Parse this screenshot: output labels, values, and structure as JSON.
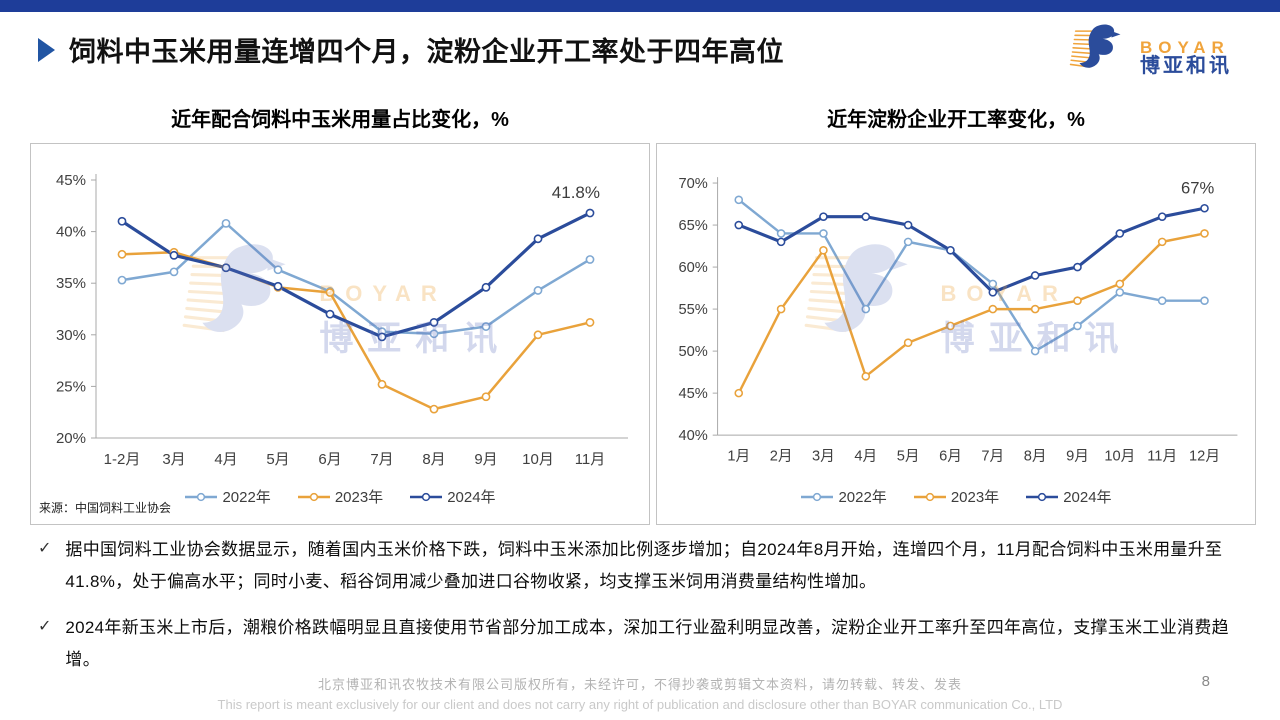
{
  "page": {
    "title": "饲料中玉米用量连增四个月，淀粉企业开工率处于四年高位",
    "page_number": "8",
    "footer_line1": "北京博亚和讯农牧技术有限公司版权所有，未经许可，不得抄袭或剪辑文本资料，请勿转载、转发、发表",
    "footer_line2": "This report is meant exclusively for our client and does not carry any right of publication and disclosure other than BOYAR communication Co., LTD"
  },
  "logo": {
    "text_en": "BOYAR",
    "text_cn": "博亚和讯"
  },
  "watermark": {
    "text_en": "BOYAR",
    "text_cn": "博亚和讯"
  },
  "source_note": "来源：中国饲料工业协会",
  "colors": {
    "accent_bar": "#1E3D99",
    "title_arrow": "#2155A3",
    "series_2022": "#7FA8D2",
    "series_2023": "#E9A23B",
    "series_2024": "#2B4C9B",
    "logo_orange": "#F0A43C",
    "logo_blue": "#2B4C9B"
  },
  "bullets": [
    "据中国饲料工业协会数据显示，随着国内玉米价格下跌，饲料中玉米添加比例逐步增加；自2024年8月开始，连增四个月，11月配合饲料中玉米用量升至41.8%，处于偏高水平；同时小麦、稻谷饲用减少叠加进口谷物收紧，均支撑玉米饲用消费量结构性增加。",
    "2024年新玉米上市后，潮粮价格跌幅明显且直接使用节省部分加工成本，深加工行业盈利明显改善，淀粉企业开工率升至四年高位，支撑玉米工业消费趋增。"
  ],
  "bullet_marker": "✓",
  "chart_data": [
    {
      "type": "line",
      "title": "近年配合饲料中玉米用量占比变化，%",
      "categories": [
        "1-2月",
        "3月",
        "4月",
        "5月",
        "6月",
        "7月",
        "8月",
        "9月",
        "10月",
        "11月"
      ],
      "series": [
        {
          "name": "2022年",
          "color": "#7FA8D2",
          "width": 2.5,
          "values": [
            35.3,
            36.1,
            40.8,
            36.3,
            34.2,
            30.3,
            30.1,
            30.8,
            34.3,
            37.3
          ]
        },
        {
          "name": "2023年",
          "color": "#E9A23B",
          "width": 2.5,
          "values": [
            37.8,
            38.0,
            36.5,
            34.6,
            34.1,
            25.2,
            22.8,
            24.0,
            30.0,
            31.2
          ]
        },
        {
          "name": "2024年",
          "color": "#2B4C9B",
          "width": 3.2,
          "values": [
            41.0,
            37.7,
            36.5,
            34.7,
            32.0,
            29.8,
            31.2,
            34.6,
            39.3,
            41.8
          ]
        }
      ],
      "ylim": [
        20,
        45
      ],
      "ytick_step": 5,
      "ytick_suffix": "%",
      "grid": false,
      "legend_position": "bottom",
      "annotation": {
        "text": "41.8%",
        "series": "2024年",
        "index": 9
      }
    },
    {
      "type": "line",
      "title": "近年淀粉企业开工率变化，%",
      "categories": [
        "1月",
        "2月",
        "3月",
        "4月",
        "5月",
        "6月",
        "7月",
        "8月",
        "9月",
        "10月",
        "11月",
        "12月"
      ],
      "series": [
        {
          "name": "2022年",
          "color": "#7FA8D2",
          "width": 2.5,
          "values": [
            68,
            64,
            64,
            55,
            63,
            62,
            58,
            50,
            53,
            57,
            56,
            56
          ]
        },
        {
          "name": "2023年",
          "color": "#E9A23B",
          "width": 2.5,
          "values": [
            45,
            55,
            62,
            47,
            51,
            53,
            55,
            55,
            56,
            58,
            63,
            64
          ]
        },
        {
          "name": "2024年",
          "color": "#2B4C9B",
          "width": 3.2,
          "values": [
            65,
            63,
            66,
            66,
            65,
            62,
            57,
            59,
            60,
            64,
            66,
            67
          ]
        }
      ],
      "ylim": [
        40,
        70
      ],
      "ytick_step": 5,
      "ytick_suffix": "%",
      "grid": false,
      "legend_position": "bottom",
      "annotation": {
        "text": "67%",
        "series": "2024年",
        "index": 11
      }
    }
  ]
}
